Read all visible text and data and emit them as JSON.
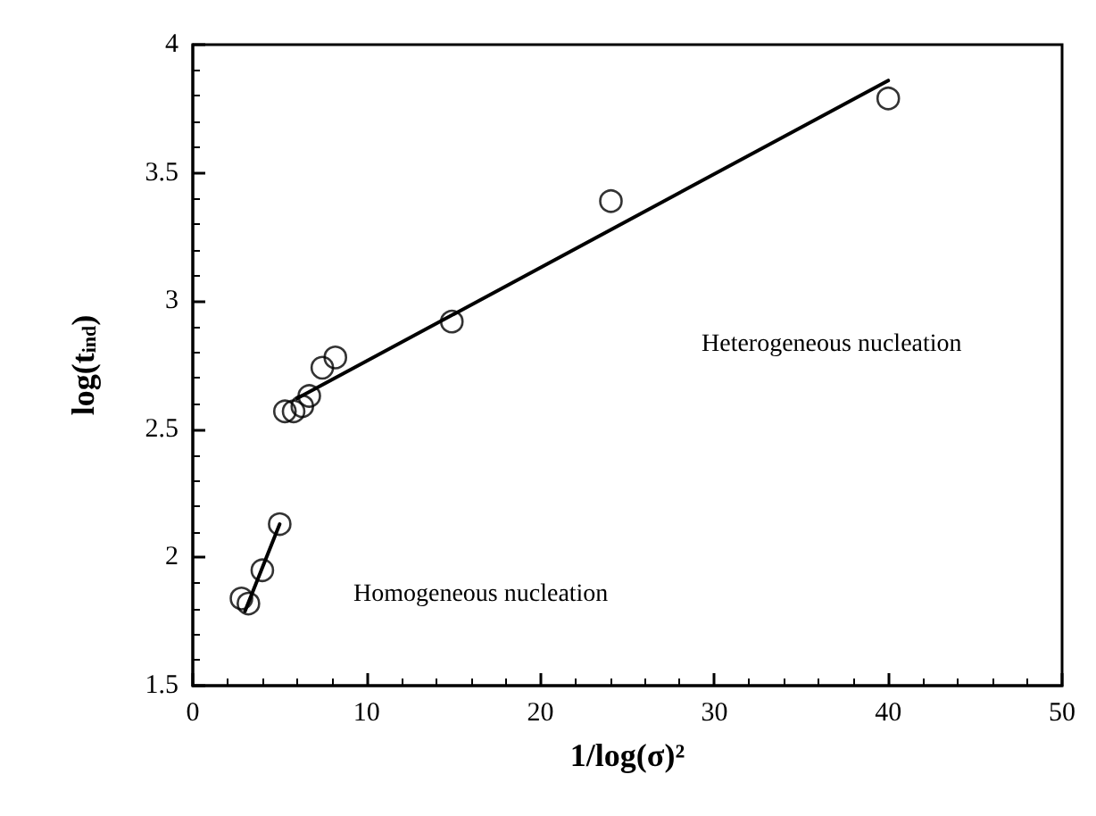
{
  "chart_data": {
    "type": "scatter",
    "xlabel": "1/log(σ)²",
    "ylabel": "log(t$_{ind}$)",
    "xlim": [
      0,
      50
    ],
    "xticks": [
      0,
      10,
      20,
      30,
      40,
      50
    ],
    "ylim": [
      1.5,
      4
    ],
    "yticks": [
      1.5,
      2,
      2.5,
      3,
      3.5,
      4
    ],
    "grid": false,
    "marker": "circle",
    "series": [
      {
        "color": "#000000",
        "x": [
          2.8,
          3.2,
          4.0,
          5.0,
          5.3,
          5.8,
          6.3,
          6.7,
          7.45,
          8.2,
          14.9,
          24.05,
          40
        ],
        "values": [
          1.84,
          1.82,
          1.95,
          2.13,
          2.57,
          2.57,
          2.59,
          2.63,
          2.74,
          2.78,
          2.92,
          3.39,
          3.79
        ]
      },
      {
        "type": "line",
        "color": "#000000",
        "marker": "none",
        "x": [
          3.0,
          5.0
        ],
        "values": [
          1.79,
          2.13
        ]
      },
      {
        "type": "line",
        "color": "#000000",
        "marker": "none",
        "x": [
          6,
          40
        ],
        "values": [
          2.62,
          3.86
        ]
      }
    ],
    "annotations": [
      "Heterogeneous nucleation",
      "Homogeneous nucleation"
    ]
  }
}
